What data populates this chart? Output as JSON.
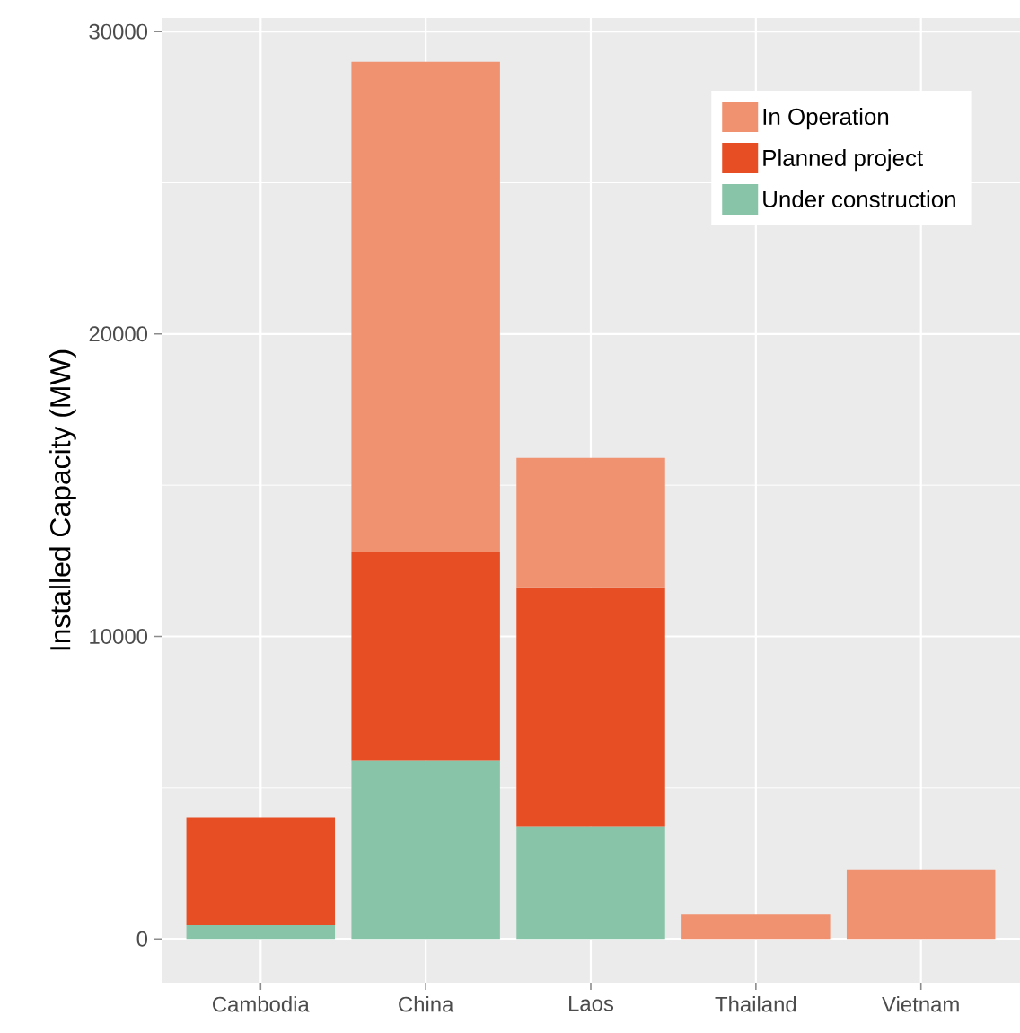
{
  "chart_data": {
    "type": "bar",
    "stacked": true,
    "ylabel": "Installed Capacity (MW)",
    "categories": [
      "Cambodia",
      "China",
      "Laos",
      "Thailand",
      "Vietnam"
    ],
    "series": [
      {
        "name": "Under construction",
        "color": "#88c4a8",
        "values": [
          450,
          5900,
          3700,
          null,
          null
        ]
      },
      {
        "name": "Planned project",
        "color": "#e84e24",
        "values": [
          3550,
          6900,
          7900,
          null,
          null
        ]
      },
      {
        "name": "In Operation",
        "color": "#f0916f",
        "values": [
          null,
          16200,
          4300,
          800,
          2300
        ]
      }
    ],
    "ylim": [
      -1450,
      30450
    ],
    "yticks": [
      0,
      10000,
      20000,
      30000
    ],
    "grid": true,
    "legend": "top right"
  }
}
